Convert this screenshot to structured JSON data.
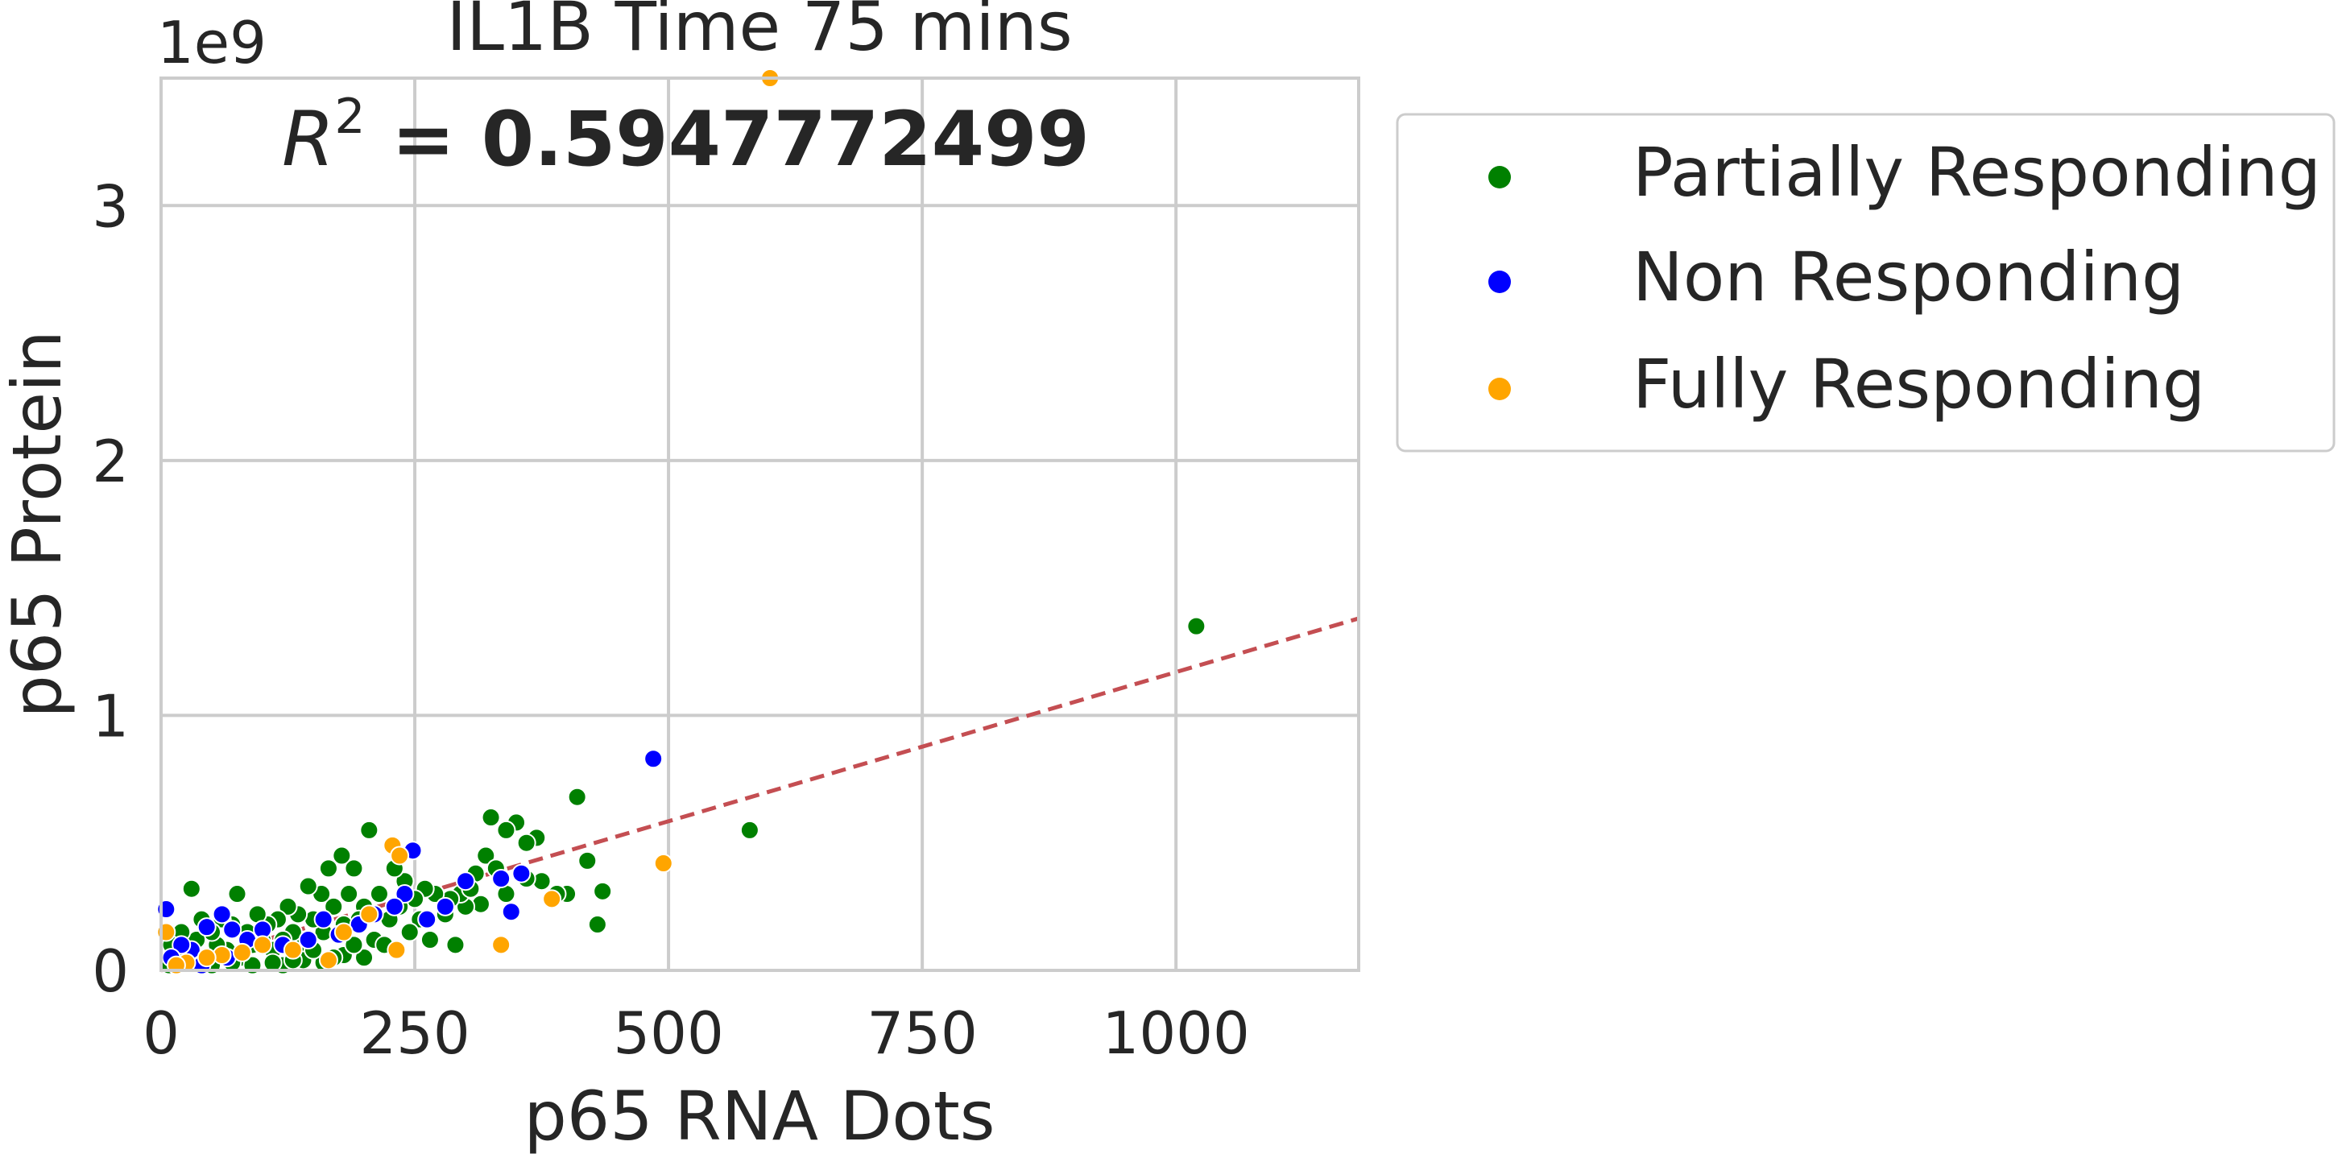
{
  "chart_data": {
    "type": "scatter",
    "title": "IL1B Time 75 mins",
    "annotation": {
      "r2_label": "R",
      "r2_sup": "2",
      "r2_value": " = 0.5947772499"
    },
    "xlabel": "p65 RNA Dots",
    "ylabel": "p65 Protein",
    "y_offset_label": "1e9",
    "xlim": [
      0,
      1180
    ],
    "ylim": [
      0,
      3.5
    ],
    "x_ticks": [
      0,
      250,
      500,
      750,
      1000
    ],
    "x_tick_labels": [
      "0",
      "250",
      "500",
      "750",
      "1000"
    ],
    "y_ticks": [
      0,
      1,
      2,
      3
    ],
    "y_tick_labels": [
      "0",
      "1",
      "2",
      "3"
    ],
    "grid": true,
    "legend_position": "outside-right",
    "colors": {
      "Partially Responding": "#008000",
      "Non Responding": "#0000ff",
      "Fully Responding": "#ffa500",
      "fit": "#c44e52",
      "grid": "#cccccc"
    },
    "fit_line": {
      "style": "dashed",
      "slope": 0.00117,
      "intercept": 0.0
    },
    "series": [
      {
        "name": "Partially Responding",
        "color": "#008000",
        "points": [
          [
            1020,
            1.35
          ],
          [
            580,
            0.55
          ],
          [
            410,
            0.68
          ],
          [
            430,
            0.18
          ],
          [
            435,
            0.31
          ],
          [
            420,
            0.43
          ],
          [
            400,
            0.3
          ],
          [
            390,
            0.3
          ],
          [
            375,
            0.35
          ],
          [
            370,
            0.52
          ],
          [
            360,
            0.5
          ],
          [
            350,
            0.58
          ],
          [
            340,
            0.55
          ],
          [
            325,
            0.6
          ],
          [
            320,
            0.45
          ],
          [
            330,
            0.4
          ],
          [
            310,
            0.38
          ],
          [
            315,
            0.26
          ],
          [
            300,
            0.25
          ],
          [
            295,
            0.3
          ],
          [
            290,
            0.1
          ],
          [
            285,
            0.28
          ],
          [
            280,
            0.22
          ],
          [
            270,
            0.3
          ],
          [
            260,
            0.32
          ],
          [
            255,
            0.2
          ],
          [
            250,
            0.28
          ],
          [
            240,
            0.35
          ],
          [
            235,
            0.25
          ],
          [
            230,
            0.4
          ],
          [
            225,
            0.2
          ],
          [
            215,
            0.3
          ],
          [
            210,
            0.12
          ],
          [
            205,
            0.55
          ],
          [
            200,
            0.25
          ],
          [
            195,
            0.2
          ],
          [
            190,
            0.4
          ],
          [
            185,
            0.3
          ],
          [
            180,
            0.18
          ],
          [
            178,
            0.45
          ],
          [
            170,
            0.25
          ],
          [
            165,
            0.4
          ],
          [
            160,
            0.15
          ],
          [
            158,
            0.3
          ],
          [
            150,
            0.2
          ],
          [
            145,
            0.33
          ],
          [
            140,
            0.1
          ],
          [
            135,
            0.22
          ],
          [
            130,
            0.15
          ],
          [
            125,
            0.25
          ],
          [
            120,
            0.12
          ],
          [
            115,
            0.2
          ],
          [
            110,
            0.08
          ],
          [
            105,
            0.18
          ],
          [
            100,
            0.12
          ],
          [
            95,
            0.22
          ],
          [
            90,
            0.1
          ],
          [
            85,
            0.15
          ],
          [
            80,
            0.05
          ],
          [
            75,
            0.3
          ],
          [
            70,
            0.18
          ],
          [
            65,
            0.08
          ],
          [
            60,
            0.2
          ],
          [
            55,
            0.1
          ],
          [
            50,
            0.15
          ],
          [
            45,
            0.05
          ],
          [
            40,
            0.2
          ],
          [
            35,
            0.12
          ],
          [
            30,
            0.32
          ],
          [
            25,
            0.08
          ],
          [
            20,
            0.15
          ],
          [
            15,
            0.05
          ],
          [
            10,
            0.1
          ],
          [
            8,
            0.02
          ],
          [
            120,
            0.02
          ],
          [
            140,
            0.04
          ],
          [
            160,
            0.03
          ],
          [
            180,
            0.06
          ],
          [
            200,
            0.05
          ],
          [
            220,
            0.1
          ],
          [
            245,
            0.15
          ],
          [
            265,
            0.12
          ],
          [
            190,
            0.1
          ],
          [
            170,
            0.05
          ],
          [
            150,
            0.08
          ],
          [
            130,
            0.04
          ],
          [
            110,
            0.03
          ],
          [
            90,
            0.02
          ],
          [
            70,
            0.03
          ],
          [
            50,
            0.02
          ],
          [
            340,
            0.3
          ],
          [
            360,
            0.36
          ],
          [
            305,
            0.32
          ]
        ]
      },
      {
        "name": "Non Responding",
        "color": "#0000ff",
        "points": [
          [
            485,
            0.83
          ],
          [
            355,
            0.38
          ],
          [
            345,
            0.23
          ],
          [
            335,
            0.36
          ],
          [
            300,
            0.35
          ],
          [
            280,
            0.25
          ],
          [
            262,
            0.2
          ],
          [
            248,
            0.47
          ],
          [
            240,
            0.3
          ],
          [
            230,
            0.25
          ],
          [
            210,
            0.22
          ],
          [
            195,
            0.18
          ],
          [
            175,
            0.14
          ],
          [
            160,
            0.2
          ],
          [
            145,
            0.12
          ],
          [
            120,
            0.1
          ],
          [
            100,
            0.16
          ],
          [
            85,
            0.12
          ],
          [
            70,
            0.16
          ],
          [
            60,
            0.22
          ],
          [
            45,
            0.17
          ],
          [
            30,
            0.08
          ],
          [
            20,
            0.1
          ],
          [
            10,
            0.05
          ],
          [
            5,
            0.24
          ],
          [
            40,
            0.02
          ],
          [
            65,
            0.05
          ]
        ]
      },
      {
        "name": "Fully Responding",
        "color": "#ffa500",
        "points": [
          [
            600,
            3.5
          ],
          [
            495,
            0.42
          ],
          [
            385,
            0.28
          ],
          [
            335,
            0.1
          ],
          [
            232,
            0.08
          ],
          [
            228,
            0.49
          ],
          [
            235,
            0.45
          ],
          [
            205,
            0.22
          ],
          [
            180,
            0.15
          ],
          [
            165,
            0.04
          ],
          [
            130,
            0.08
          ],
          [
            100,
            0.1
          ],
          [
            80,
            0.07
          ],
          [
            60,
            0.06
          ],
          [
            45,
            0.05
          ],
          [
            25,
            0.03
          ],
          [
            5,
            0.15
          ],
          [
            15,
            0.02
          ]
        ]
      }
    ]
  },
  "legend": {
    "items": [
      {
        "label": "Partially Responding",
        "color": "#008000"
      },
      {
        "label": "Non Responding",
        "color": "#0000ff"
      },
      {
        "label": "Fully Responding",
        "color": "#ffa500"
      }
    ]
  }
}
